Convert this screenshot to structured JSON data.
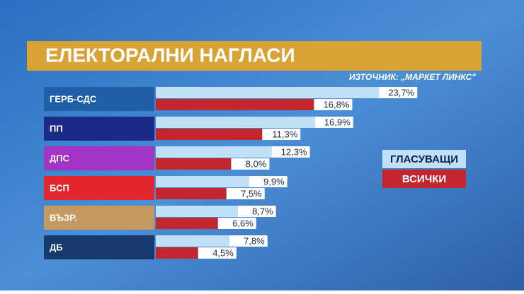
{
  "chart_data": {
    "type": "bar",
    "title": "ЕЛЕКТОРАЛНИ НАГЛАСИ",
    "subtitle": "ИЗТОЧНИК: „МАРКЕТ ЛИНКС\"",
    "categories": [
      "ГЕРБ-СДС",
      "ПП",
      "ДПС",
      "БСП",
      "ВЪЗР.",
      "ДБ"
    ],
    "category_colors": [
      "#1f5fa8",
      "#1b2a86",
      "#a233c4",
      "#e3262b",
      "#c49a62",
      "#17396b"
    ],
    "series": [
      {
        "name": "ГЛАСУВАЩИ",
        "color": "#bfe0f7",
        "values": [
          23.7,
          16.9,
          12.3,
          9.9,
          8.7,
          7.8
        ],
        "value_labels": [
          "23,7%",
          "16,9%",
          "12,3%",
          "9,9%",
          "8,7%",
          "7,8%"
        ]
      },
      {
        "name": "ВСИЧКИ",
        "color": "#c3272d",
        "values": [
          16.8,
          11.3,
          8.0,
          7.5,
          6.6,
          4.5
        ],
        "value_labels": [
          "16,8%",
          "11,3%",
          "8,0%",
          "7,5%",
          "6,6%",
          "4,5%"
        ]
      }
    ]
  }
}
